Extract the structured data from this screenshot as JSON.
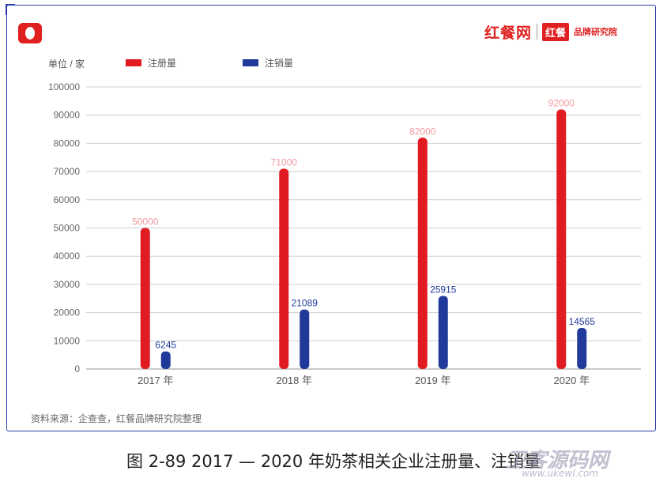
{
  "chart_data": {
    "type": "bar",
    "unit_label": "单位 / 家",
    "categories": [
      "2017 年",
      "2018 年",
      "2019 年",
      "2020 年"
    ],
    "series": [
      {
        "name": "注册量",
        "color": "#e11b22",
        "values": [
          50000,
          71000,
          82000,
          92000
        ]
      },
      {
        "name": "注销量",
        "color": "#1f3a9a",
        "values": [
          6245,
          21089,
          25915,
          14565
        ]
      }
    ],
    "data_labels": [
      [
        "50000",
        "71000",
        "82000",
        "92000"
      ],
      [
        "6245",
        "21089",
        "25915",
        "14565"
      ]
    ],
    "y_ticks": [
      "0",
      "10000",
      "20000",
      "30000",
      "40000",
      "50000",
      "60000",
      "70000",
      "80000",
      "90000",
      "100000"
    ],
    "ylim": [
      0,
      100000
    ],
    "grid": true,
    "legend_position": "top"
  },
  "source_note": "资料来源：企查查，红餐品牌研究院整理",
  "caption": "图 2-89    2017 — 2020 年奶茶相关企业注册量、注销量",
  "logo": {
    "text": "红餐网",
    "badge": "红餐",
    "small": "品牌研究院"
  },
  "watermark": {
    "text": "卫客源码网",
    "url": "www.ukewl.com"
  }
}
